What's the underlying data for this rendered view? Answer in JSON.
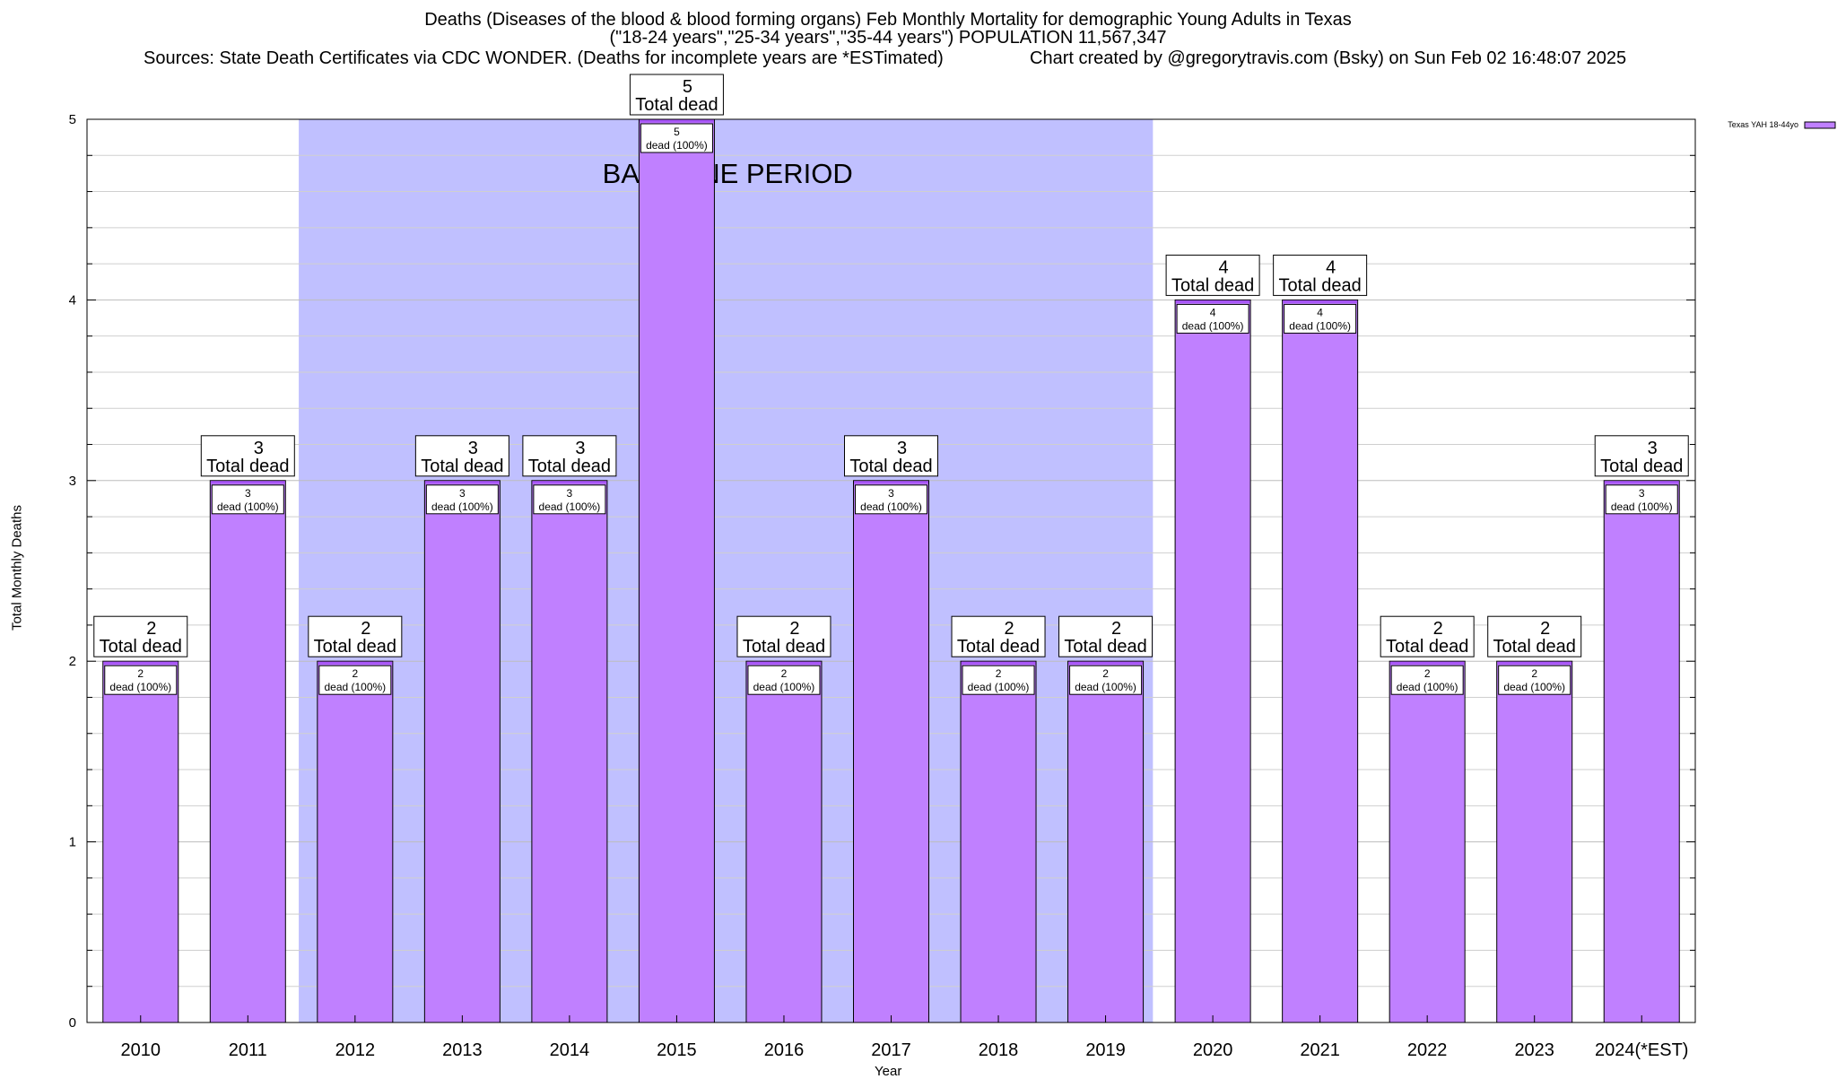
{
  "chart_data": {
    "type": "bar",
    "title_lines": [
      "Deaths (Diseases of the blood & blood forming organs) Feb Monthly Mortality for demographic Young Adults in Texas",
      "(\"18-24 years\",\"25-34 years\",\"35-44 years\") POPULATION 11,567,347"
    ],
    "source": "Sources: State Death Certificates via CDC WONDER. (Deaths for incomplete years are *ESTimated)",
    "created": "Chart created by @gregorytravis.com (Bsky) on Sun Feb 02 16:48:07 2025",
    "xlabel": "Year",
    "ylabel": "Total Monthly Deaths",
    "ylim": [
      0,
      5
    ],
    "yticks": [
      "0",
      "1",
      "2",
      "3",
      "4",
      "5"
    ],
    "minor_step": 0.2,
    "categories": [
      "2010",
      "2011",
      "2012",
      "2013",
      "2014",
      "2015",
      "2016",
      "2017",
      "2018",
      "2019",
      "2020",
      "2021",
      "2022",
      "2023",
      "2024(*EST)"
    ],
    "series": [
      {
        "name": "Texas YAH 18-44yo",
        "values": [
          2,
          3,
          2,
          3,
          3,
          5,
          2,
          3,
          2,
          2,
          4,
          4,
          2,
          2,
          3
        ]
      }
    ],
    "top_label_suffix": "Total dead",
    "inner_label_suffix": "dead (100%)",
    "baseline": {
      "label": "BASELINE PERIOD",
      "from": "2012",
      "to": "2019"
    },
    "legend_position": "top-right",
    "colors": {
      "bar": "#c080ff",
      "bar_top": "#a855f7",
      "baseline": "#c0c0ff"
    }
  }
}
